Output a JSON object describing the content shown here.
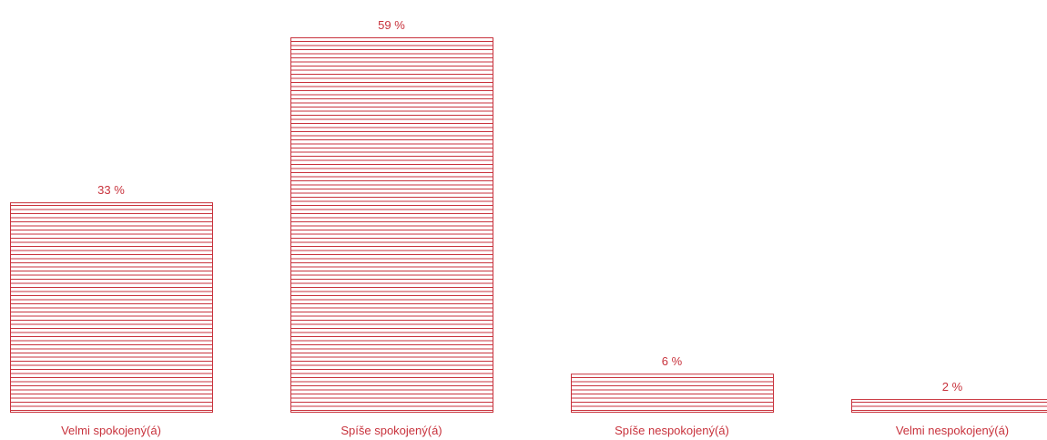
{
  "colors": {
    "accent": "#c8323c",
    "background": "#ffffff"
  },
  "chart_data": {
    "type": "bar",
    "title": "",
    "xlabel": "",
    "ylabel": "",
    "categories": [
      "Velmi spokojený(á)",
      "Spíše spokojený(á)",
      "Spíše nespokojený(á)",
      "Velmi nespokojený(á)"
    ],
    "values": [
      33,
      59,
      6,
      2
    ],
    "value_labels": [
      "33 %",
      "59 %",
      "6 %",
      "2 %"
    ],
    "ylim": [
      0,
      59
    ],
    "grid": false,
    "legend": "none",
    "bar_fill": "horizontal-stripes"
  }
}
